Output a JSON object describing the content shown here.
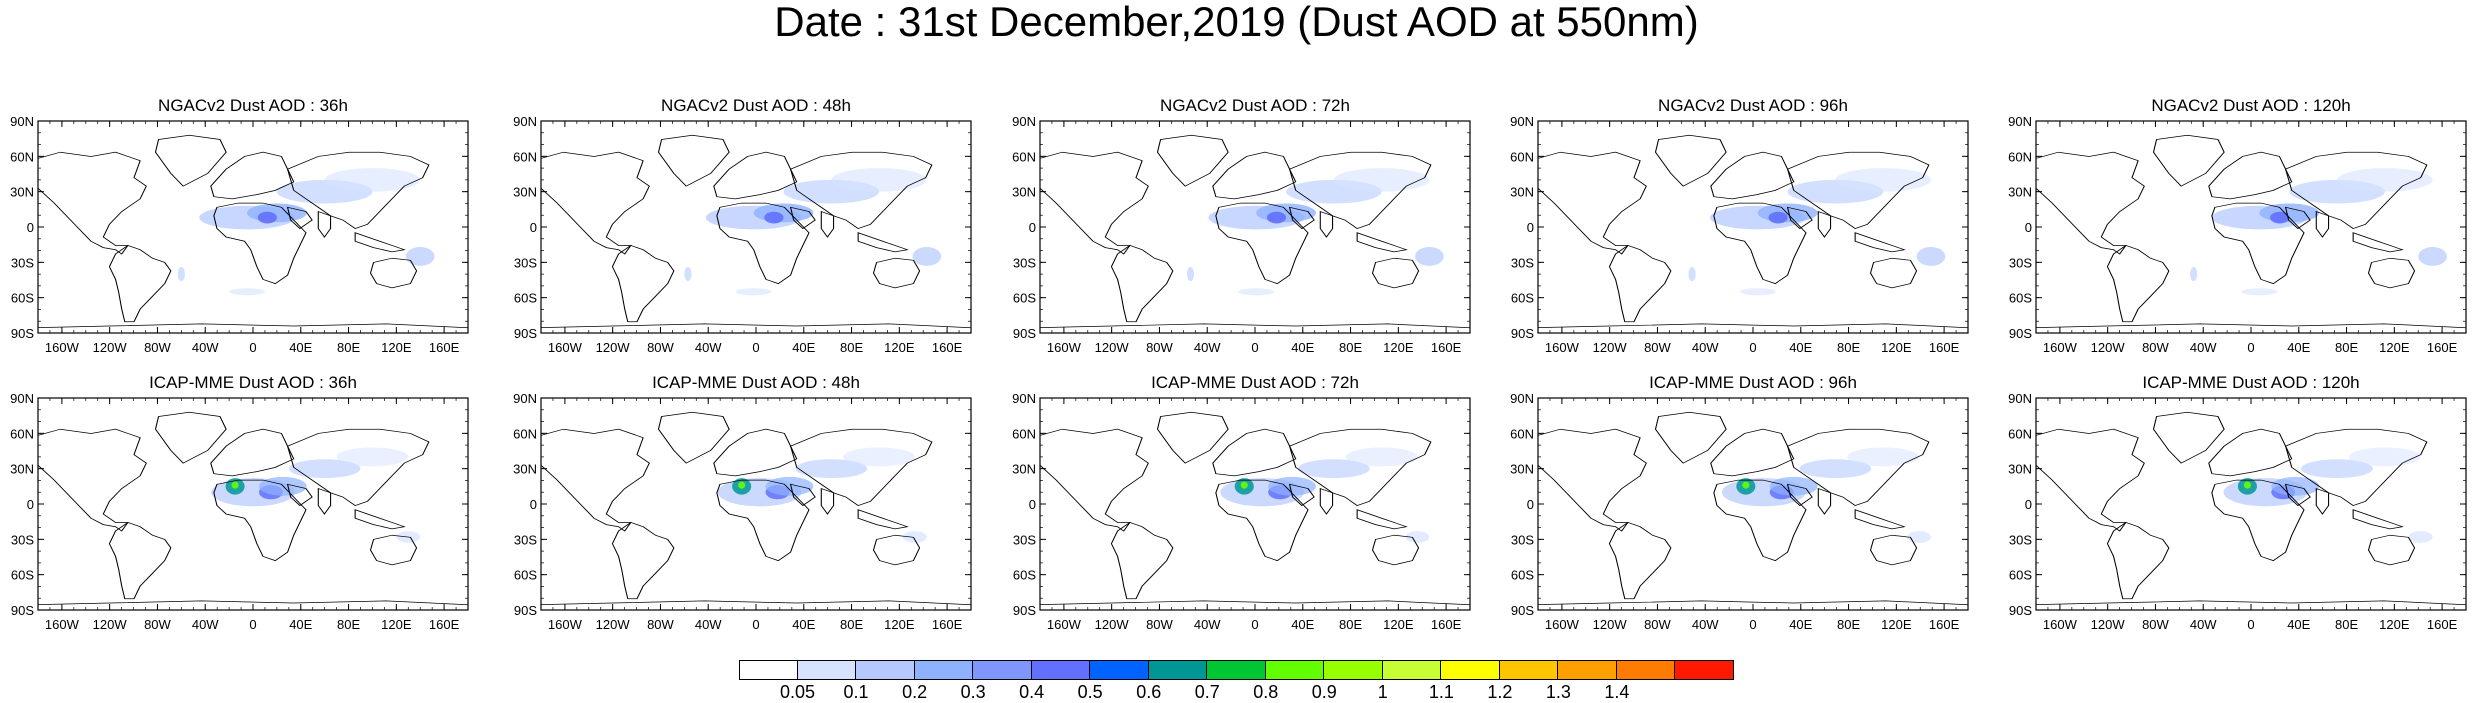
{
  "title": "Date : 31st December,2019 (Dust AOD at 550nm)",
  "rows": [
    {
      "model": "NGACv2",
      "panels": [
        {
          "title": "NGACv2 Dust AOD : 36h"
        },
        {
          "title": "NGACv2 Dust AOD : 48h"
        },
        {
          "title": "NGACv2 Dust AOD : 72h"
        },
        {
          "title": "NGACv2 Dust AOD : 96h"
        },
        {
          "title": "NGACv2 Dust AOD : 120h"
        }
      ]
    },
    {
      "model": "ICAP-MME",
      "panels": [
        {
          "title": "ICAP-MME Dust AOD : 36h"
        },
        {
          "title": "ICAP-MME Dust AOD : 48h"
        },
        {
          "title": "ICAP-MME Dust AOD : 72h"
        },
        {
          "title": "ICAP-MME Dust AOD : 96h"
        },
        {
          "title": "ICAP-MME Dust AOD : 120h"
        }
      ]
    }
  ],
  "lat_labels": [
    "90N",
    "60N",
    "30N",
    "0",
    "30S",
    "60S",
    "90S"
  ],
  "lon_labels": [
    "160W",
    "120W",
    "80W",
    "40W",
    "0",
    "40E",
    "80E",
    "120E",
    "160E"
  ],
  "colorbar": {
    "labels": [
      "0.05",
      "0.1",
      "0.2",
      "0.3",
      "0.4",
      "0.5",
      "0.6",
      "0.7",
      "0.8",
      "0.9",
      "1",
      "1.1",
      "1.2",
      "1.3",
      "1.4"
    ],
    "colors": [
      "#ffffff",
      "#d6e2ff",
      "#b5c9ff",
      "#8eb2ff",
      "#7f96ff",
      "#6370ff",
      "#0063ff",
      "#009696",
      "#00c633",
      "#63ff00",
      "#96ff00",
      "#c6ff33",
      "#ffff00",
      "#ffc600",
      "#ffa000",
      "#ff7c00",
      "#ff1900"
    ]
  }
}
